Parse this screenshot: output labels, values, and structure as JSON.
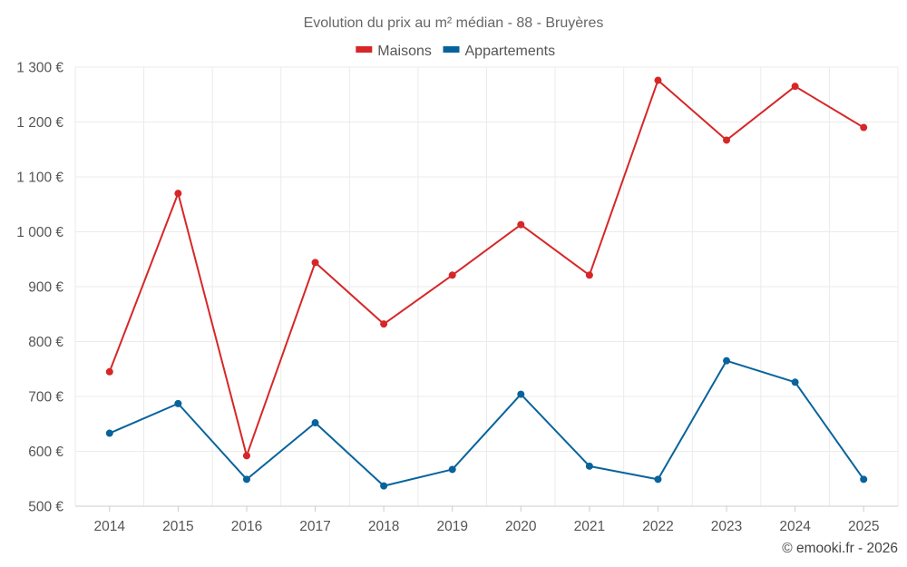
{
  "chart_data": {
    "type": "line",
    "title": "Evolution du prix au m² médian - 88 - Bruyères",
    "categories": [
      "2014",
      "2015",
      "2016",
      "2017",
      "2018",
      "2019",
      "2020",
      "2021",
      "2022",
      "2023",
      "2024",
      "2025"
    ],
    "series": [
      {
        "name": "Maisons",
        "color": "#d62728",
        "values": [
          745,
          1070,
          592,
          944,
          832,
          921,
          1013,
          921,
          1276,
          1167,
          1265,
          1190
        ]
      },
      {
        "name": "Appartements",
        "color": "#08639c",
        "values": [
          633,
          687,
          549,
          652,
          537,
          567,
          704,
          573,
          549,
          765,
          726,
          549
        ]
      }
    ],
    "ylim": [
      500,
      1300
    ],
    "yticks": [
      500,
      600,
      700,
      800,
      900,
      1000,
      1100,
      1200,
      1300
    ],
    "ytick_labels": [
      "500 €",
      "600 €",
      "700 €",
      "800 €",
      "900 €",
      "1 000 €",
      "1 100 €",
      "1 200 €",
      "1 300 €"
    ],
    "legend_position": "top-center",
    "grid": true
  },
  "credit": "© emooki.fr - 2026"
}
